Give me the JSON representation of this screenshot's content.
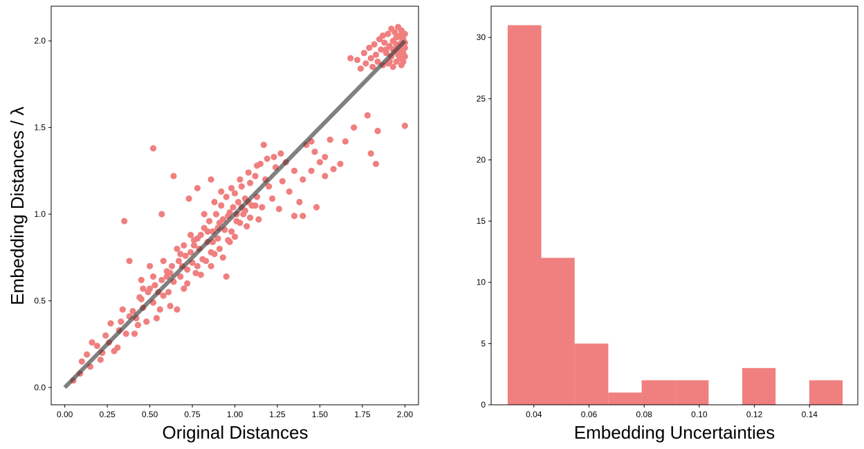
{
  "colors": {
    "marker": "#f07f7f",
    "line": "#3c3c3c",
    "bar": "#f07f7f"
  },
  "chart_data": [
    {
      "type": "scatter",
      "title": "",
      "xlabel": "Original Distances",
      "ylabel": "Embedding Distances / λ",
      "xlim": [
        -0.08,
        2.08
      ],
      "ylim": [
        -0.1,
        2.2
      ],
      "xticks": [
        0.0,
        0.25,
        0.5,
        0.75,
        1.0,
        1.25,
        1.5,
        1.75,
        2.0
      ],
      "xtick_labels": [
        "0.00",
        "0.25",
        "0.50",
        "0.75",
        "1.00",
        "1.25",
        "1.50",
        "1.75",
        "2.00"
      ],
      "yticks": [
        0.0,
        0.5,
        1.0,
        1.5,
        2.0
      ],
      "ytick_labels": [
        "0.0",
        "0.5",
        "1.0",
        "1.5",
        "2.0"
      ],
      "grid": false,
      "reference_line": {
        "x": [
          0,
          2
        ],
        "y": [
          0,
          2
        ]
      },
      "points": [
        [
          0.05,
          0.04
        ],
        [
          0.09,
          0.08
        ],
        [
          0.1,
          0.15
        ],
        [
          0.13,
          0.19
        ],
        [
          0.15,
          0.12
        ],
        [
          0.16,
          0.26
        ],
        [
          0.19,
          0.24
        ],
        [
          0.21,
          0.16
        ],
        [
          0.22,
          0.2
        ],
        [
          0.24,
          0.3
        ],
        [
          0.26,
          0.26
        ],
        [
          0.27,
          0.37
        ],
        [
          0.29,
          0.21
        ],
        [
          0.31,
          0.23
        ],
        [
          0.32,
          0.33
        ],
        [
          0.33,
          0.38
        ],
        [
          0.34,
          0.45
        ],
        [
          0.36,
          0.31
        ],
        [
          0.38,
          0.41
        ],
        [
          0.4,
          0.44
        ],
        [
          0.42,
          0.4
        ],
        [
          0.41,
          0.31
        ],
        [
          0.43,
          0.36
        ],
        [
          0.45,
          0.51
        ],
        [
          0.46,
          0.46
        ],
        [
          0.48,
          0.38
        ],
        [
          0.49,
          0.55
        ],
        [
          0.5,
          0.57
        ],
        [
          0.52,
          0.49
        ],
        [
          0.53,
          0.59
        ],
        [
          0.54,
          0.4
        ],
        [
          0.56,
          0.45
        ],
        [
          0.57,
          0.62
        ],
        [
          0.58,
          0.53
        ],
        [
          0.6,
          0.64
        ],
        [
          0.61,
          0.55
        ],
        [
          0.62,
          0.47
        ],
        [
          0.63,
          0.7
        ],
        [
          0.64,
          0.61
        ],
        [
          0.66,
          0.45
        ],
        [
          0.67,
          0.73
        ],
        [
          0.68,
          0.64
        ],
        [
          0.7,
          0.57
        ],
        [
          0.71,
          0.76
        ],
        [
          0.72,
          0.68
        ],
        [
          0.74,
          0.78
        ],
        [
          0.75,
          0.72
        ],
        [
          0.76,
          0.85
        ],
        [
          0.77,
          0.66
        ],
        [
          0.79,
          0.8
        ],
        [
          0.8,
          0.88
        ],
        [
          0.81,
          0.74
        ],
        [
          0.82,
          0.92
        ],
        [
          0.84,
          0.84
        ],
        [
          0.85,
          0.96
        ],
        [
          0.86,
          0.78
        ],
        [
          0.87,
          0.9
        ],
        [
          0.89,
          1.0
        ],
        [
          0.9,
          0.86
        ],
        [
          0.91,
          0.95
        ],
        [
          0.92,
          1.05
        ],
        [
          0.94,
          0.91
        ],
        [
          0.95,
          1.1
        ],
        [
          0.96,
          0.99
        ],
        [
          0.97,
          0.84
        ],
        [
          0.99,
          1.04
        ],
        [
          1.0,
          1.12
        ],
        [
          1.01,
          0.96
        ],
        [
          1.02,
          1.07
        ],
        [
          1.04,
          1.16
        ],
        [
          1.05,
          1.0
        ],
        [
          1.06,
          1.09
        ],
        [
          1.07,
          0.93
        ],
        [
          1.09,
          1.18
        ],
        [
          1.1,
          1.05
        ],
        [
          1.12,
          1.22
        ],
        [
          1.13,
          1.1
        ],
        [
          1.15,
          1.29
        ],
        [
          1.16,
          1.04
        ],
        [
          1.18,
          1.2
        ],
        [
          1.2,
          1.16
        ],
        [
          1.22,
          1.09
        ],
        [
          1.24,
          1.27
        ],
        [
          1.26,
          1.03
        ],
        [
          1.28,
          1.19
        ],
        [
          1.3,
          1.3
        ],
        [
          1.32,
          1.13
        ],
        [
          1.35,
          1.25
        ],
        [
          1.38,
          1.07
        ],
        [
          1.4,
          1.2
        ],
        [
          1.42,
          1.4
        ],
        [
          1.45,
          1.25
        ],
        [
          1.48,
          1.04
        ],
        [
          1.5,
          1.3
        ],
        [
          1.53,
          1.22
        ],
        [
          1.56,
          1.43
        ],
        [
          1.58,
          1.26
        ],
        [
          1.62,
          1.29
        ],
        [
          1.65,
          1.42
        ],
        [
          1.7,
          1.5
        ],
        [
          0.38,
          0.73
        ],
        [
          0.35,
          0.96
        ],
        [
          0.52,
          1.38
        ],
        [
          0.57,
          1.0
        ],
        [
          0.64,
          1.22
        ],
        [
          0.73,
          1.09
        ],
        [
          0.78,
          1.15
        ],
        [
          0.86,
          1.2
        ],
        [
          0.95,
          0.64
        ],
        [
          1.17,
          1.4
        ],
        [
          1.35,
          0.99
        ],
        [
          1.4,
          0.99
        ],
        [
          1.45,
          1.42
        ],
        [
          1.47,
          1.36
        ],
        [
          1.53,
          1.33
        ],
        [
          1.78,
          1.57
        ],
        [
          1.8,
          1.35
        ],
        [
          1.83,
          1.29
        ],
        [
          1.84,
          1.48
        ],
        [
          2.0,
          1.51
        ],
        [
          0.46,
          0.57
        ],
        [
          0.55,
          0.55
        ],
        [
          0.62,
          0.66
        ],
        [
          0.69,
          0.7
        ],
        [
          0.72,
          0.6
        ],
        [
          0.78,
          0.7
        ],
        [
          0.8,
          0.65
        ],
        [
          0.83,
          0.73
        ],
        [
          0.86,
          0.7
        ],
        [
          0.88,
          0.77
        ],
        [
          0.91,
          0.8
        ],
        [
          0.93,
          0.75
        ],
        [
          0.96,
          0.85
        ],
        [
          0.98,
          0.9
        ],
        [
          1.0,
          0.87
        ],
        [
          1.03,
          0.95
        ],
        [
          1.06,
          1.02
        ],
        [
          1.09,
          0.98
        ],
        [
          1.12,
          1.05
        ],
        [
          1.14,
          0.97
        ],
        [
          0.82,
          1.0
        ],
        [
          0.88,
          1.07
        ],
        [
          0.92,
          1.13
        ],
        [
          0.98,
          1.15
        ],
        [
          1.03,
          1.2
        ],
        [
          1.08,
          1.24
        ],
        [
          1.13,
          1.28
        ],
        [
          1.19,
          1.32
        ],
        [
          1.23,
          1.33
        ],
        [
          1.27,
          1.35
        ],
        [
          0.76,
          0.82
        ],
        [
          0.78,
          0.86
        ],
        [
          0.84,
          0.9
        ],
        [
          0.87,
          0.84
        ],
        [
          0.9,
          0.92
        ],
        [
          0.93,
          0.97
        ],
        [
          0.97,
          1.01
        ],
        [
          1.01,
          1.0
        ],
        [
          1.04,
          1.04
        ],
        [
          1.08,
          1.07
        ],
        [
          0.45,
          0.62
        ],
        [
          0.5,
          0.7
        ],
        [
          0.58,
          0.73
        ],
        [
          0.66,
          0.8
        ],
        [
          0.7,
          0.82
        ],
        [
          0.74,
          0.88
        ],
        [
          0.68,
          0.77
        ],
        [
          0.6,
          0.67
        ],
        [
          0.52,
          0.64
        ],
        [
          0.44,
          0.52
        ],
        [
          1.68,
          1.9
        ],
        [
          1.72,
          1.89
        ],
        [
          1.74,
          1.84
        ],
        [
          1.76,
          1.93
        ],
        [
          1.77,
          1.87
        ],
        [
          1.79,
          1.96
        ],
        [
          1.8,
          1.9
        ],
        [
          1.81,
          1.85
        ],
        [
          1.82,
          1.98
        ],
        [
          1.83,
          1.92
        ],
        [
          1.84,
          1.88
        ],
        [
          1.85,
          2.01
        ],
        [
          1.86,
          1.95
        ],
        [
          1.87,
          1.86
        ],
        [
          1.88,
          1.99
        ],
        [
          1.89,
          1.93
        ],
        [
          1.9,
          2.04
        ],
        [
          1.9,
          1.87
        ],
        [
          1.91,
          1.97
        ],
        [
          1.92,
          2.07
        ],
        [
          1.92,
          1.91
        ],
        [
          1.93,
          1.85
        ],
        [
          1.93,
          2.0
        ],
        [
          1.94,
          2.05
        ],
        [
          1.94,
          1.94
        ],
        [
          1.95,
          1.88
        ],
        [
          1.95,
          2.02
        ],
        [
          1.96,
          2.08
        ],
        [
          1.96,
          1.96
        ],
        [
          1.97,
          1.9
        ],
        [
          1.97,
          2.03
        ],
        [
          1.98,
          1.86
        ],
        [
          1.98,
          1.99
        ],
        [
          1.98,
          2.06
        ],
        [
          1.99,
          1.93
        ],
        [
          1.99,
          2.01
        ],
        [
          1.99,
          1.88
        ],
        [
          2.0,
          2.04
        ],
        [
          2.0,
          1.96
        ],
        [
          2.0,
          1.91
        ],
        [
          1.87,
          2.03
        ],
        [
          1.89,
          1.95
        ],
        [
          1.91,
          1.88
        ],
        [
          1.93,
          1.95
        ],
        [
          1.95,
          1.98
        ],
        [
          1.97,
          1.94
        ],
        [
          1.99,
          1.97
        ],
        [
          2.0,
          1.99
        ],
        [
          1.98,
          2.02
        ],
        [
          1.96,
          1.92
        ]
      ]
    },
    {
      "type": "bar",
      "title": "",
      "xlabel": "Embedding Uncertainties",
      "ylabel": "",
      "xlim": [
        0.0245,
        0.1575
      ],
      "ylim": [
        0,
        32.55
      ],
      "xticks": [
        0.04,
        0.06,
        0.08,
        0.1,
        0.12,
        0.14
      ],
      "xtick_labels": [
        "0.04",
        "0.06",
        "0.08",
        "0.10",
        "0.12",
        "0.14"
      ],
      "yticks": [
        0,
        5,
        10,
        15,
        20,
        25,
        30
      ],
      "ytick_labels": [
        "0",
        "5",
        "10",
        "15",
        "20",
        "25",
        "30"
      ],
      "grid": false,
      "bin_edges": [
        0.0305,
        0.0427,
        0.0548,
        0.067,
        0.0791,
        0.0913,
        0.1034,
        0.1156,
        0.1277,
        0.1399,
        0.152
      ],
      "values": [
        31,
        12,
        5,
        1,
        2,
        2,
        0,
        3,
        0,
        2
      ]
    }
  ]
}
